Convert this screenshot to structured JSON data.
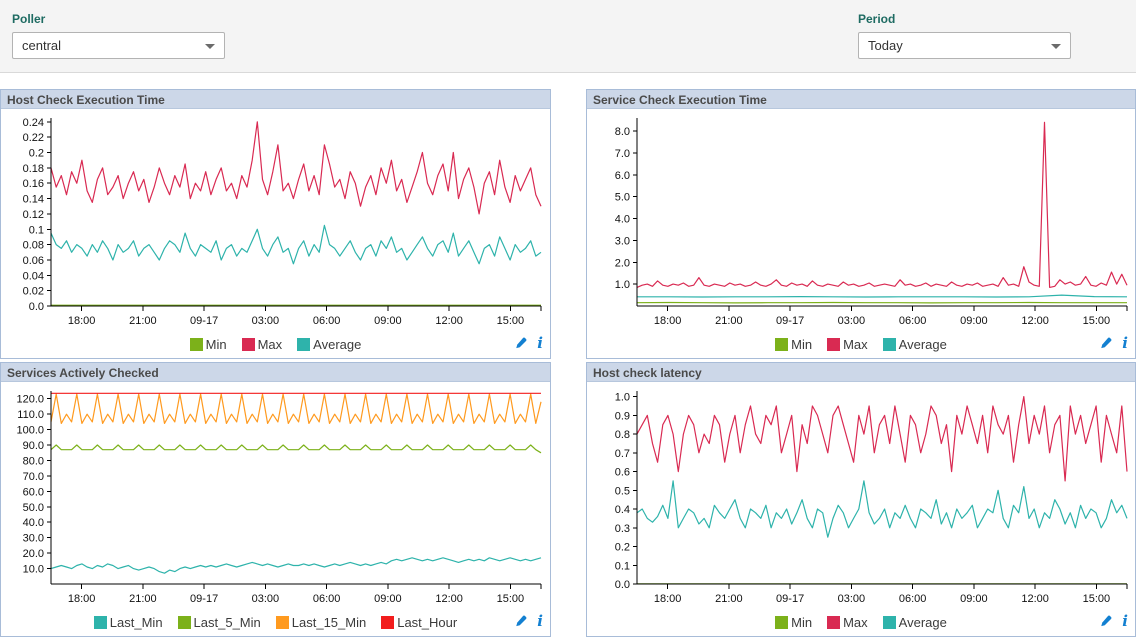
{
  "filters": {
    "poller": {
      "label": "Poller",
      "value": "central"
    },
    "period": {
      "label": "Period",
      "value": "Today"
    }
  },
  "ui_colors": {
    "filter_label": "#1e6b62",
    "panel_titlebar": "#ccd7e8",
    "panel_border": "#a8bcd8",
    "icon_blue": "#1380d1"
  },
  "icons": {
    "edit": "pencil-icon",
    "info": "info-icon",
    "dropdown": "chevron-down-icon"
  },
  "chart_data": [
    {
      "type": "line",
      "title": "Host Check Execution Time",
      "xlabel": "",
      "ylabel": "",
      "grid": false,
      "legend_position": "bottom",
      "x_tick_labels": [
        "18:00",
        "21:00",
        "09-17",
        "03:00",
        "06:00",
        "09:00",
        "12:00",
        "15:00"
      ],
      "x_tick_pos": [
        0.0625,
        0.1875,
        0.3125,
        0.4375,
        0.5625,
        0.6875,
        0.8125,
        0.9375
      ],
      "y_ticks": [
        0,
        0.02,
        0.04,
        0.06,
        0.08,
        0.1,
        0.12,
        0.14,
        0.16,
        0.18,
        0.2,
        0.22,
        0.24
      ],
      "y_tick_labels": [
        "0.0",
        "0.02",
        "0.04",
        "0.06",
        "0.08",
        "0.1",
        "0.12",
        "0.14",
        "0.16",
        "0.18",
        "0.2",
        "0.22",
        "0.24"
      ],
      "ylim": [
        0,
        0.245
      ],
      "series": [
        {
          "name": "Min",
          "color": "#7cb11a",
          "values": [
            0.001,
            0.001
          ]
        },
        {
          "name": "Max",
          "color": "#d92a52",
          "values": [
            0.18,
            0.155,
            0.17,
            0.145,
            0.175,
            0.16,
            0.19,
            0.15,
            0.135,
            0.165,
            0.18,
            0.145,
            0.155,
            0.17,
            0.14,
            0.16,
            0.175,
            0.15,
            0.165,
            0.135,
            0.155,
            0.18,
            0.16,
            0.145,
            0.17,
            0.155,
            0.185,
            0.14,
            0.16,
            0.15,
            0.175,
            0.145,
            0.165,
            0.18,
            0.15,
            0.16,
            0.14,
            0.17,
            0.155,
            0.19,
            0.24,
            0.165,
            0.145,
            0.175,
            0.21,
            0.15,
            0.16,
            0.14,
            0.165,
            0.185,
            0.15,
            0.17,
            0.145,
            0.21,
            0.185,
            0.155,
            0.165,
            0.14,
            0.175,
            0.16,
            0.13,
            0.155,
            0.17,
            0.145,
            0.18,
            0.16,
            0.19,
            0.15,
            0.165,
            0.135,
            0.155,
            0.175,
            0.2,
            0.16,
            0.145,
            0.17,
            0.185,
            0.15,
            0.2,
            0.14,
            0.165,
            0.18,
            0.155,
            0.12,
            0.16,
            0.175,
            0.145,
            0.19,
            0.155,
            0.135,
            0.17,
            0.15,
            0.165,
            0.18,
            0.145,
            0.13
          ]
        },
        {
          "name": "Average",
          "color": "#2eb3ab",
          "values": [
            0.095,
            0.08,
            0.075,
            0.085,
            0.07,
            0.08,
            0.075,
            0.065,
            0.08,
            0.07,
            0.085,
            0.075,
            0.06,
            0.08,
            0.07,
            0.075,
            0.085,
            0.065,
            0.075,
            0.08,
            0.07,
            0.06,
            0.075,
            0.085,
            0.08,
            0.07,
            0.095,
            0.075,
            0.065,
            0.08,
            0.075,
            0.07,
            0.085,
            0.06,
            0.075,
            0.08,
            0.065,
            0.075,
            0.07,
            0.085,
            0.1,
            0.075,
            0.065,
            0.08,
            0.09,
            0.07,
            0.075,
            0.055,
            0.075,
            0.085,
            0.065,
            0.08,
            0.07,
            0.105,
            0.08,
            0.075,
            0.065,
            0.075,
            0.085,
            0.07,
            0.06,
            0.075,
            0.08,
            0.065,
            0.085,
            0.075,
            0.09,
            0.07,
            0.075,
            0.06,
            0.07,
            0.08,
            0.09,
            0.075,
            0.065,
            0.08,
            0.085,
            0.07,
            0.095,
            0.065,
            0.075,
            0.085,
            0.07,
            0.055,
            0.075,
            0.08,
            0.065,
            0.09,
            0.075,
            0.06,
            0.08,
            0.07,
            0.075,
            0.085,
            0.065,
            0.07
          ]
        }
      ]
    },
    {
      "type": "line",
      "title": "Service Check Execution Time",
      "xlabel": "",
      "ylabel": "",
      "grid": false,
      "legend_position": "bottom",
      "x_tick_labels": [
        "18:00",
        "21:00",
        "09-17",
        "03:00",
        "06:00",
        "09:00",
        "12:00",
        "15:00"
      ],
      "x_tick_pos": [
        0.0625,
        0.1875,
        0.3125,
        0.4375,
        0.5625,
        0.6875,
        0.8125,
        0.9375
      ],
      "y_ticks": [
        1,
        2,
        3,
        4,
        5,
        6,
        7,
        8
      ],
      "y_tick_labels": [
        "1.0",
        "2.0",
        "3.0",
        "4.0",
        "5.0",
        "6.0",
        "7.0",
        "8.0"
      ],
      "ylim": [
        0,
        8.6
      ],
      "series": [
        {
          "name": "Min",
          "color": "#7cb11a",
          "values": [
            0.15,
            0.16,
            0.15,
            0.14,
            0.15,
            0.15,
            0.16,
            0.15,
            0.15,
            0.14,
            0.15,
            0.15,
            0.16,
            0.15,
            0.15,
            0.15
          ]
        },
        {
          "name": "Max",
          "color": "#d92a52",
          "values": [
            0.85,
            0.95,
            1.0,
            0.9,
            1.15,
            0.95,
            0.9,
            1.0,
            0.95,
            1.05,
            0.9,
            0.95,
            1.3,
            0.95,
            0.9,
            1.0,
            0.95,
            0.9,
            1.05,
            0.95,
            1.0,
            0.9,
            0.95,
            1.1,
            0.95,
            0.9,
            1.0,
            1.2,
            0.95,
            0.9,
            1.05,
            0.95,
            1.0,
            0.9,
            1.15,
            0.95,
            0.9,
            1.0,
            0.95,
            0.9,
            1.1,
            0.95,
            1.0,
            0.9,
            0.95,
            1.05,
            0.9,
            0.95,
            1.0,
            0.95,
            0.9,
            1.2,
            0.95,
            1.0,
            0.9,
            0.95,
            1.05,
            0.9,
            1.0,
            0.95,
            0.9,
            1.1,
            0.95,
            0.9,
            1.0,
            0.95,
            1.05,
            0.9,
            0.95,
            1.0,
            0.9,
            1.3,
            0.95,
            1.0,
            0.9,
            1.8,
            1.1,
            0.95,
            0.9,
            8.4,
            0.85,
            0.9,
            1.2,
            1.0,
            1.1,
            0.95,
            1.0,
            1.35,
            0.95,
            0.9,
            1.05,
            0.95,
            1.55,
            1.0,
            1.45,
            0.95
          ]
        },
        {
          "name": "Average",
          "color": "#2eb3ab",
          "values": [
            0.42,
            0.42,
            0.41,
            0.42,
            0.42,
            0.43,
            0.42,
            0.41,
            0.42,
            0.42,
            0.42,
            0.41,
            0.42,
            0.5,
            0.43,
            0.42
          ]
        }
      ]
    },
    {
      "type": "line",
      "title": "Services Actively Checked",
      "xlabel": "",
      "ylabel": "",
      "grid": false,
      "legend_position": "bottom",
      "x_tick_labels": [
        "18:00",
        "21:00",
        "09-17",
        "03:00",
        "06:00",
        "09:00",
        "12:00",
        "15:00"
      ],
      "x_tick_pos": [
        0.0625,
        0.1875,
        0.3125,
        0.4375,
        0.5625,
        0.6875,
        0.8125,
        0.9375
      ],
      "y_ticks": [
        10,
        20,
        30,
        40,
        50,
        60,
        70,
        80,
        90,
        100,
        110,
        120
      ],
      "y_tick_labels": [
        "10.0",
        "20.0",
        "30.0",
        "40.0",
        "50.0",
        "60.0",
        "70.0",
        "80.0",
        "90.0",
        "100.0",
        "110.0",
        "120.0"
      ],
      "ylim": [
        0,
        125
      ],
      "series": [
        {
          "name": "Last_Min",
          "color": "#2eb3ab",
          "values": [
            10,
            11,
            12,
            11,
            10,
            12,
            13,
            11,
            10,
            12,
            11,
            13,
            12,
            10,
            11,
            12,
            10,
            9,
            10,
            11,
            10,
            8,
            7,
            9,
            8,
            10,
            11,
            10,
            11,
            12,
            11,
            12,
            11,
            12,
            13,
            12,
            11,
            12,
            13,
            14,
            13,
            12,
            13,
            12,
            11,
            12,
            13,
            12,
            12,
            13,
            12,
            13,
            12,
            11,
            12,
            13,
            12,
            13,
            14,
            13,
            12,
            13,
            12,
            13,
            14,
            13,
            15,
            16,
            15,
            16,
            17,
            16,
            15,
            16,
            15,
            16,
            17,
            16,
            15,
            14,
            15,
            16,
            15,
            16,
            15,
            17,
            16,
            15,
            16,
            17,
            16,
            15,
            16,
            15,
            16,
            17
          ]
        },
        {
          "name": "Last_5_Min",
          "color": "#7cb11a",
          "values": [
            87,
            90,
            87,
            87,
            87,
            90,
            87,
            87,
            87,
            90,
            87,
            87,
            87,
            90,
            87,
            87,
            87,
            90,
            87,
            87,
            87,
            90,
            87,
            87,
            87,
            90,
            87,
            87,
            87,
            90,
            87,
            87,
            87,
            90,
            87,
            87,
            87,
            90,
            87,
            87,
            87,
            90,
            87,
            87,
            87,
            90,
            87,
            87,
            87,
            90,
            87,
            87,
            87,
            90,
            87,
            87,
            87,
            90,
            87,
            87,
            87,
            90,
            87,
            87,
            87,
            90,
            87,
            87,
            87,
            90,
            87,
            87,
            87,
            90,
            87,
            87,
            87,
            90,
            87,
            87,
            87,
            90,
            87,
            87,
            87,
            90,
            87,
            87,
            87,
            90,
            87,
            87,
            87,
            90,
            87,
            85
          ]
        },
        {
          "name": "Last_15_Min",
          "color": "#ff9a1f",
          "values": [
            105,
            123,
            104,
            110,
            105,
            123,
            104,
            110,
            105,
            123,
            104,
            110,
            105,
            123,
            104,
            110,
            105,
            123,
            104,
            110,
            105,
            123,
            104,
            110,
            105,
            123,
            104,
            110,
            105,
            123,
            104,
            110,
            105,
            123,
            104,
            110,
            105,
            123,
            104,
            110,
            105,
            123,
            104,
            110,
            105,
            123,
            104,
            110,
            105,
            123,
            104,
            110,
            105,
            123,
            104,
            110,
            105,
            123,
            104,
            110,
            105,
            123,
            104,
            110,
            105,
            123,
            104,
            110,
            105,
            123,
            104,
            110,
            105,
            123,
            104,
            110,
            105,
            123,
            104,
            110,
            105,
            123,
            104,
            110,
            105,
            123,
            104,
            110,
            105,
            123,
            104,
            110,
            105,
            123,
            104,
            118
          ]
        },
        {
          "name": "Last_Hour",
          "color": "#f21d1d",
          "values": [
            123.5,
            123.5,
            123.5,
            123.5
          ]
        }
      ]
    },
    {
      "type": "line",
      "title": "Host check latency",
      "xlabel": "",
      "ylabel": "",
      "grid": false,
      "legend_position": "bottom",
      "x_tick_labels": [
        "18:00",
        "21:00",
        "09-17",
        "03:00",
        "06:00",
        "09:00",
        "12:00",
        "15:00"
      ],
      "x_tick_pos": [
        0.0625,
        0.1875,
        0.3125,
        0.4375,
        0.5625,
        0.6875,
        0.8125,
        0.9375
      ],
      "y_ticks": [
        0,
        0.1,
        0.2,
        0.3,
        0.4,
        0.5,
        0.6,
        0.7,
        0.8,
        0.9,
        1.0
      ],
      "y_tick_labels": [
        "0.0",
        "0.1",
        "0.2",
        "0.3",
        "0.4",
        "0.5",
        "0.6",
        "0.7",
        "0.8",
        "0.9",
        "1.0"
      ],
      "ylim": [
        0,
        1.03
      ],
      "series": [
        {
          "name": "Min",
          "color": "#7cb11a",
          "values": [
            0.001,
            0.001
          ]
        },
        {
          "name": "Max",
          "color": "#d92a52",
          "values": [
            0.8,
            0.85,
            0.9,
            0.75,
            0.65,
            0.85,
            0.9,
            0.8,
            0.6,
            0.8,
            0.9,
            0.85,
            0.7,
            0.8,
            0.75,
            0.9,
            0.85,
            0.65,
            0.8,
            0.9,
            0.7,
            0.85,
            0.95,
            0.8,
            0.75,
            0.9,
            0.85,
            0.95,
            0.7,
            0.8,
            0.9,
            0.6,
            0.85,
            0.75,
            0.95,
            0.9,
            0.8,
            0.7,
            0.9,
            0.95,
            0.85,
            0.75,
            0.65,
            0.9,
            0.8,
            0.95,
            0.7,
            0.85,
            0.9,
            0.75,
            0.95,
            0.8,
            0.65,
            0.9,
            0.85,
            0.7,
            0.8,
            0.95,
            0.9,
            0.75,
            0.85,
            0.6,
            0.9,
            0.8,
            0.95,
            0.85,
            0.75,
            0.9,
            0.7,
            0.95,
            0.85,
            0.8,
            0.9,
            0.65,
            0.85,
            1.0,
            0.75,
            0.9,
            0.8,
            0.95,
            0.7,
            0.85,
            0.9,
            0.55,
            0.95,
            0.8,
            0.9,
            0.75,
            0.85,
            0.95,
            0.65,
            0.9,
            0.8,
            0.7,
            0.95,
            0.6
          ]
        },
        {
          "name": "Average",
          "color": "#2eb3ab",
          "values": [
            0.38,
            0.4,
            0.35,
            0.33,
            0.36,
            0.42,
            0.35,
            0.55,
            0.3,
            0.35,
            0.4,
            0.38,
            0.32,
            0.35,
            0.3,
            0.42,
            0.38,
            0.35,
            0.4,
            0.45,
            0.35,
            0.3,
            0.4,
            0.38,
            0.35,
            0.42,
            0.3,
            0.38,
            0.35,
            0.4,
            0.32,
            0.38,
            0.45,
            0.35,
            0.3,
            0.4,
            0.38,
            0.25,
            0.35,
            0.42,
            0.38,
            0.3,
            0.35,
            0.4,
            0.55,
            0.38,
            0.32,
            0.35,
            0.4,
            0.3,
            0.38,
            0.35,
            0.42,
            0.35,
            0.3,
            0.4,
            0.38,
            0.35,
            0.45,
            0.32,
            0.38,
            0.3,
            0.4,
            0.35,
            0.38,
            0.42,
            0.3,
            0.35,
            0.4,
            0.38,
            0.5,
            0.35,
            0.3,
            0.42,
            0.38,
            0.52,
            0.35,
            0.4,
            0.3,
            0.38,
            0.35,
            0.45,
            0.4,
            0.32,
            0.38,
            0.3,
            0.42,
            0.35,
            0.4,
            0.38,
            0.3,
            0.35,
            0.45,
            0.38,
            0.42,
            0.35
          ]
        }
      ]
    }
  ]
}
